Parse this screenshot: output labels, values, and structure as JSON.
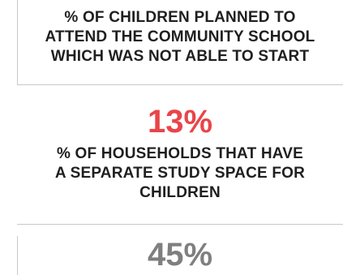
{
  "stat_1": {
    "label_lines": [
      "% OF CHILDREN PLANNED TO",
      "ATTEND THE COMMUNITY SCHOOL",
      "WHICH WAS NOT ABLE TO START"
    ],
    "value": "13%",
    "value_color": "#e8454a"
  },
  "stat_2": {
    "label_lines": [
      "% OF HOUSEHOLDS THAT HAVE",
      "A SEPARATE STUDY SPACE FOR",
      "CHILDREN"
    ],
    "value": "45%",
    "value_color": "#7f7f7f"
  }
}
